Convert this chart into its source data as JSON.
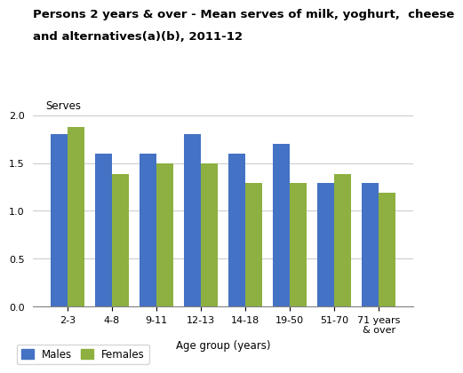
{
  "title_line1": "Persons 2 years & over - Mean serves of milk, yoghurt,  cheese",
  "title_line2": "and alternatives(a)(b), 2011-12",
  "serves_label": "Serves",
  "xlabel": "Age group (years)",
  "categories": [
    "2-3",
    "4-8",
    "9-11",
    "12-13",
    "14-18",
    "19-50",
    "51-70",
    "71 years\n& over"
  ],
  "males": [
    1.8,
    1.6,
    1.6,
    1.8,
    1.6,
    1.7,
    1.29,
    1.29
  ],
  "females": [
    1.88,
    1.38,
    1.5,
    1.5,
    1.29,
    1.29,
    1.38,
    1.19
  ],
  "male_color": "#4472C4",
  "female_color": "#8DB040",
  "ylim": [
    0.0,
    2.0
  ],
  "yticks": [
    0.0,
    0.5,
    1.0,
    1.5,
    2.0
  ],
  "legend_labels": [
    "Males",
    "Females"
  ],
  "bar_width": 0.38,
  "title_fontsize": 9.5,
  "axis_label_fontsize": 8.5,
  "tick_fontsize": 8,
  "legend_fontsize": 8.5
}
